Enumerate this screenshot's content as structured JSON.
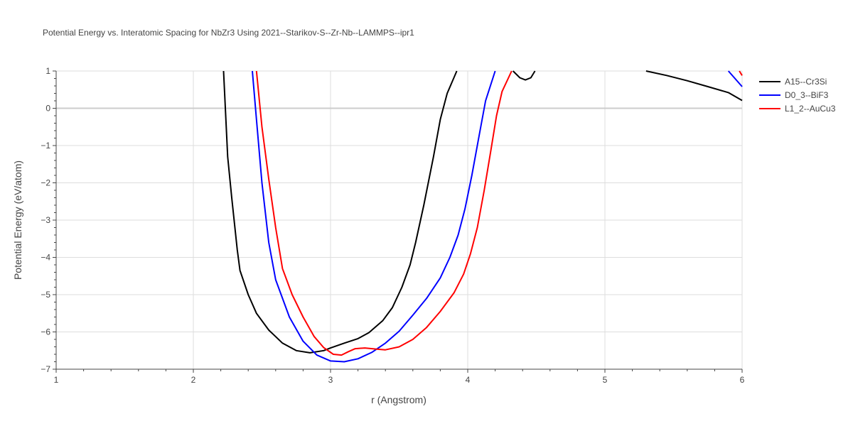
{
  "chart_data": {
    "type": "line",
    "title": "Potential Energy vs. Interatomic Spacing for NbZr3 Using 2021--Starikov-S--Zr-Nb--LAMMPS--ipr1",
    "xlabel": "r (Angstrom)",
    "ylabel": "Potential Energy (eV/atom)",
    "xlim": [
      1,
      6
    ],
    "ylim": [
      -7,
      1
    ],
    "xticks": [
      1,
      2,
      3,
      4,
      5,
      6
    ],
    "xtick_labels": [
      "1",
      "2",
      "3",
      "4",
      "5",
      "6"
    ],
    "yticks": [
      1,
      0,
      -1,
      -2,
      -3,
      -4,
      -5,
      -6,
      -7
    ],
    "ytick_labels": [
      "1",
      "0",
      "−1",
      "−2",
      "−3",
      "−4",
      "−5",
      "−6",
      "−7"
    ],
    "grid": true,
    "legend_position": "top-right",
    "series": [
      {
        "name": "A15--Cr3Si",
        "color": "#000000",
        "points": [
          [
            2.22,
            1.0
          ],
          [
            2.25,
            -1.3
          ],
          [
            2.28,
            -2.4
          ],
          [
            2.32,
            -3.8
          ],
          [
            2.34,
            -4.35
          ],
          [
            2.4,
            -5.0
          ],
          [
            2.46,
            -5.5
          ],
          [
            2.55,
            -5.95
          ],
          [
            2.65,
            -6.3
          ],
          [
            2.75,
            -6.5
          ],
          [
            2.85,
            -6.56
          ],
          [
            2.95,
            -6.5
          ],
          [
            3.0,
            -6.43
          ],
          [
            3.1,
            -6.3
          ],
          [
            3.2,
            -6.18
          ],
          [
            3.28,
            -6.02
          ],
          [
            3.38,
            -5.7
          ],
          [
            3.45,
            -5.35
          ],
          [
            3.52,
            -4.8
          ],
          [
            3.58,
            -4.2
          ],
          [
            3.62,
            -3.6
          ],
          [
            3.68,
            -2.6
          ],
          [
            3.75,
            -1.3
          ],
          [
            3.8,
            -0.3
          ],
          [
            3.85,
            0.4
          ],
          [
            3.92,
            1.0
          ]
        ]
      },
      {
        "name": "A15--Cr3Si",
        "color": "#000000",
        "points": [
          [
            4.33,
            1.0
          ],
          [
            4.38,
            0.82
          ],
          [
            4.42,
            0.76
          ],
          [
            4.46,
            0.82
          ],
          [
            4.49,
            1.0
          ]
        ]
      },
      {
        "name": "A15--Cr3Si",
        "color": "#000000",
        "points": [
          [
            5.3,
            1.0
          ],
          [
            5.45,
            0.88
          ],
          [
            5.6,
            0.74
          ],
          [
            5.75,
            0.58
          ],
          [
            5.9,
            0.42
          ],
          [
            6.0,
            0.21
          ]
        ]
      },
      {
        "name": "D0_3--BiF3",
        "color": "#0000ff",
        "points": [
          [
            2.43,
            1.0
          ],
          [
            2.46,
            -0.3
          ],
          [
            2.5,
            -2.0
          ],
          [
            2.55,
            -3.6
          ],
          [
            2.6,
            -4.6
          ],
          [
            2.7,
            -5.6
          ],
          [
            2.8,
            -6.25
          ],
          [
            2.9,
            -6.62
          ],
          [
            3.0,
            -6.78
          ],
          [
            3.1,
            -6.8
          ],
          [
            3.2,
            -6.72
          ],
          [
            3.3,
            -6.55
          ],
          [
            3.4,
            -6.3
          ],
          [
            3.5,
            -5.98
          ],
          [
            3.6,
            -5.55
          ],
          [
            3.7,
            -5.1
          ],
          [
            3.8,
            -4.55
          ],
          [
            3.87,
            -4.0
          ],
          [
            3.93,
            -3.4
          ],
          [
            3.98,
            -2.7
          ],
          [
            4.03,
            -1.8
          ],
          [
            4.08,
            -0.8
          ],
          [
            4.13,
            0.2
          ],
          [
            4.2,
            1.0
          ]
        ]
      },
      {
        "name": "D0_3--BiF3",
        "color": "#0000ff",
        "points": [
          [
            5.9,
            1.0
          ],
          [
            6.0,
            0.58
          ]
        ]
      },
      {
        "name": "L1_2--AuCu3",
        "color": "#ff0000",
        "points": [
          [
            2.46,
            1.0
          ],
          [
            2.5,
            -0.5
          ],
          [
            2.55,
            -1.9
          ],
          [
            2.6,
            -3.2
          ],
          [
            2.65,
            -4.3
          ],
          [
            2.72,
            -5.0
          ],
          [
            2.8,
            -5.6
          ],
          [
            2.88,
            -6.12
          ],
          [
            2.95,
            -6.42
          ],
          [
            3.02,
            -6.6
          ],
          [
            3.08,
            -6.62
          ],
          [
            3.13,
            -6.53
          ],
          [
            3.18,
            -6.45
          ],
          [
            3.25,
            -6.43
          ],
          [
            3.33,
            -6.46
          ],
          [
            3.4,
            -6.48
          ],
          [
            3.5,
            -6.4
          ],
          [
            3.6,
            -6.2
          ],
          [
            3.7,
            -5.88
          ],
          [
            3.8,
            -5.45
          ],
          [
            3.9,
            -4.95
          ],
          [
            3.97,
            -4.45
          ],
          [
            4.02,
            -3.9
          ],
          [
            4.07,
            -3.2
          ],
          [
            4.12,
            -2.2
          ],
          [
            4.17,
            -1.1
          ],
          [
            4.21,
            -0.2
          ],
          [
            4.25,
            0.45
          ],
          [
            4.32,
            1.0
          ]
        ]
      },
      {
        "name": "L1_2--AuCu3",
        "color": "#ff0000",
        "points": [
          [
            5.98,
            1.0
          ],
          [
            6.0,
            0.88
          ]
        ]
      }
    ],
    "legend": [
      {
        "name": "A15--Cr3Si",
        "color": "#000000"
      },
      {
        "name": "D0_3--BiF3",
        "color": "#0000ff"
      },
      {
        "name": "L1_2--AuCu3",
        "color": "#ff0000"
      }
    ]
  }
}
